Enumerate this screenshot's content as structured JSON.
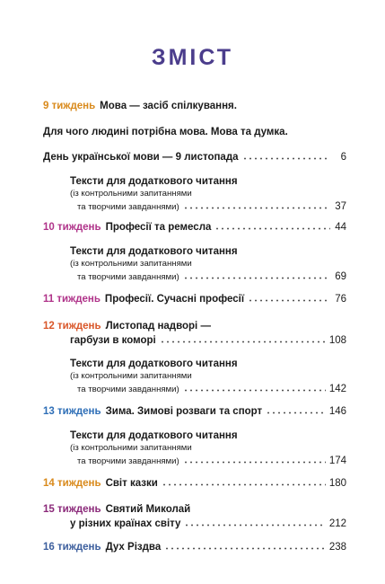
{
  "title": "ЗМІСТ",
  "colors": {
    "title": "#4b3d8c",
    "w9": "#d98a1c",
    "w10": "#b0348a",
    "w11": "#b0348a",
    "w12": "#d9572a",
    "w13": "#2f6fb7",
    "w14": "#d98a1c",
    "w15": "#8b2a7a",
    "w16": "#3d5f9e"
  },
  "extra_note_l1": "(із контрольними запитаннями",
  "extra_note_l2": "та творчими завданнями)",
  "extra_head": "Тексти для додаткового читання",
  "entries": {
    "w9": {
      "week": "9 тиждень",
      "title": "Мова — засіб спілкування."
    },
    "w9b": {
      "title": "Для чого людині потрібна мова. Мова та думка."
    },
    "w9c": {
      "title": "День української мови — 9 листопада",
      "page": "6"
    },
    "x1": {
      "page": "37"
    },
    "w10": {
      "week": "10 тиждень",
      "title": "Професії та ремесла",
      "page": "44"
    },
    "x2": {
      "page": "69"
    },
    "w11": {
      "week": "11 тиждень",
      "title": "Професії. Сучасні професії",
      "page": "76"
    },
    "w12": {
      "week": "12 тиждень",
      "title": "Листопад надворі —",
      "title2": "гарбузи в коморі",
      "page": "108"
    },
    "x3": {
      "page": "142"
    },
    "w13": {
      "week": "13 тиждень",
      "title": "Зима. Зимові розваги та спорт",
      "page": "146"
    },
    "x4": {
      "page": "174"
    },
    "w14": {
      "week": "14 тиждень",
      "title": "Світ казки",
      "page": "180"
    },
    "w15": {
      "week": "15 тиждень",
      "title": "Святий Миколай",
      "title2": "у різних країнах світу",
      "page": "212"
    },
    "w16": {
      "week": "16 тиждень",
      "title": "Дух Різдва",
      "page": "238"
    }
  }
}
